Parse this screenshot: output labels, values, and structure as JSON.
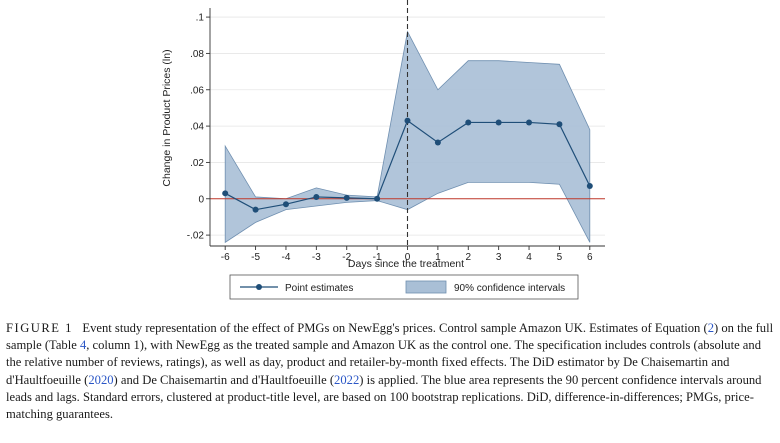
{
  "chart_data": {
    "type": "line",
    "title": "",
    "xlabel": "Days since the treatment",
    "ylabel": "Change in Product Prices (ln)",
    "x": [
      -6,
      -5,
      -4,
      -3,
      -2,
      -1,
      0,
      1,
      2,
      3,
      4,
      5,
      6
    ],
    "xticks": [
      "-6",
      "-5",
      "-4",
      "-3",
      "-2",
      "-1",
      "0",
      "1",
      "2",
      "3",
      "4",
      "5",
      "6"
    ],
    "yticks": [
      -0.02,
      0,
      0.02,
      0.04,
      0.06,
      0.08,
      0.1
    ],
    "ytick_labels": [
      "-.02",
      "0",
      ".02",
      ".04",
      ".06",
      ".08",
      ".1"
    ],
    "ylim": [
      -0.026,
      0.105
    ],
    "xlim": [
      -6.5,
      6.5
    ],
    "treatment_line_x": 0,
    "reference_line_y": 0,
    "series": [
      {
        "name": "Point estimates",
        "values": [
          0.003,
          -0.006,
          -0.003,
          0.001,
          0.0005,
          0.0,
          0.043,
          0.031,
          0.042,
          0.042,
          0.042,
          0.041,
          0.007
        ]
      },
      {
        "name": "90% confidence intervals",
        "lower": [
          -0.024,
          -0.013,
          -0.006,
          -0.004,
          -0.002,
          -0.001,
          -0.006,
          0.003,
          0.009,
          0.009,
          0.009,
          0.008,
          -0.024
        ],
        "upper": [
          0.029,
          0.001,
          0.0,
          0.006,
          0.002,
          0.001,
          0.092,
          0.06,
          0.076,
          0.076,
          0.075,
          0.074,
          0.038
        ]
      }
    ],
    "legend_position": "bottom",
    "colors": {
      "point_line": "#1f4e78",
      "ci_fill": "#a9bfd6",
      "ci_stroke": "#6f8fb0",
      "reference": "#c0392b",
      "treatment": "#333333"
    }
  },
  "caption": {
    "label": "FIGURE 1",
    "text_1": "Event study representation of the effect of PMGs on NewEgg's prices. Control sample Amazon UK. Estimates of Equation (",
    "eq_ref": "2",
    "text_2": ") on the full sample (Table ",
    "table_ref": "4",
    "text_3": ", column 1), with NewEgg as the treated sample and Amazon UK as the control one. The specification includes controls (absolute and the relative number of reviews, ratings), as well as day, product and retailer-by-month fixed effects. The DiD estimator by De Chaisemartin and d'Haultfoeuille (",
    "cite_1": "2020",
    "text_4": ") and De Chaisemartin and d'Haultfoeuille (",
    "cite_2": "2022",
    "text_5": ") is applied. The blue area represents the 90 percent confidence intervals around leads and lags. Standard errors, clustered at product-title level, are based on 100 bootstrap replications. DiD, difference-in-differences; PMGs, price-matching guarantees."
  }
}
